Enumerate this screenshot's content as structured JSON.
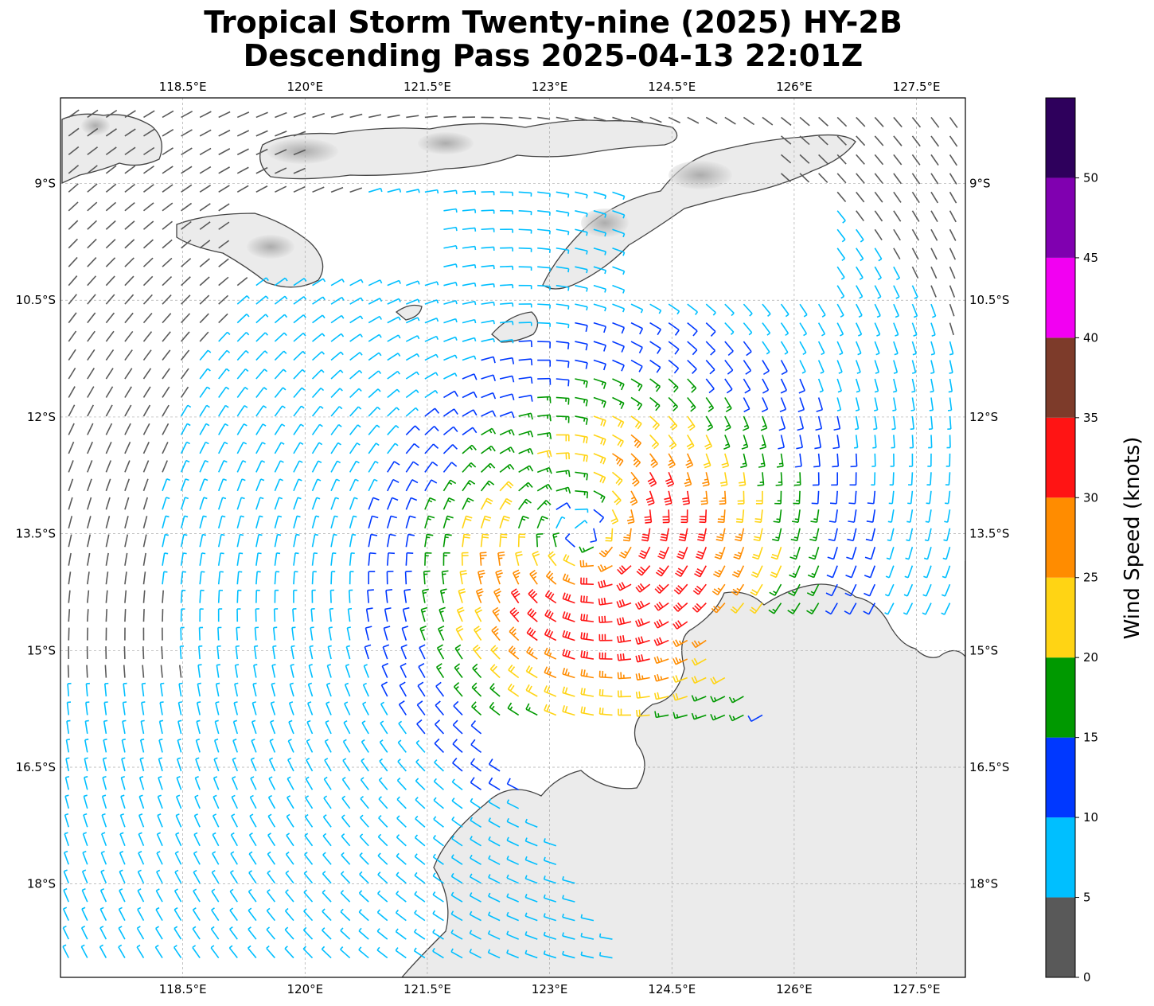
{
  "title": {
    "line1": "Tropical Storm Twenty-nine (2025) HY-2B",
    "line2": "Descending Pass 2025-04-13 22:01Z"
  },
  "map": {
    "lon_range": [
      117.0,
      128.1
    ],
    "lat_range": [
      -19.2,
      -7.9
    ],
    "lon_ticks": [
      {
        "value": 118.5,
        "label": "118.5°E"
      },
      {
        "value": 120.0,
        "label": "120°E"
      },
      {
        "value": 121.5,
        "label": "121.5°E"
      },
      {
        "value": 123.0,
        "label": "123°E"
      },
      {
        "value": 124.5,
        "label": "124.5°E"
      },
      {
        "value": 126.0,
        "label": "126°E"
      },
      {
        "value": 127.5,
        "label": "127.5°E"
      }
    ],
    "lat_ticks": [
      {
        "value": -9.0,
        "label": "9°S"
      },
      {
        "value": -10.5,
        "label": "10.5°S"
      },
      {
        "value": -12.0,
        "label": "12°S"
      },
      {
        "value": -13.5,
        "label": "13.5°S"
      },
      {
        "value": -15.0,
        "label": "15°S"
      },
      {
        "value": -16.5,
        "label": "16.5°S"
      },
      {
        "value": -18.0,
        "label": "18°S"
      }
    ],
    "gridlines": true,
    "storm_center": {
      "lon": 123.4,
      "lat": -13.5
    },
    "wind_field": "cyclonic (clockwise) circulation, strongest winds (30-35 kt) southeast of center"
  },
  "colorbar": {
    "title": "Wind Speed (knots)",
    "bins": [
      {
        "min": 0,
        "max": 5,
        "color": "#595959"
      },
      {
        "min": 5,
        "max": 10,
        "color": "#00bfff"
      },
      {
        "min": 10,
        "max": 15,
        "color": "#0038ff"
      },
      {
        "min": 15,
        "max": 20,
        "color": "#009900"
      },
      {
        "min": 20,
        "max": 25,
        "color": "#ffd414"
      },
      {
        "min": 25,
        "max": 30,
        "color": "#ff8c00"
      },
      {
        "min": 30,
        "max": 35,
        "color": "#ff1414"
      },
      {
        "min": 35,
        "max": 40,
        "color": "#7d3b2a"
      },
      {
        "min": 40,
        "max": 45,
        "color": "#f200f2"
      },
      {
        "min": 45,
        "max": 50,
        "color": "#8000b0"
      },
      {
        "min": 50,
        "max": 55,
        "color": "#2e005c"
      }
    ],
    "tick_labels": [
      "0",
      "5",
      "10",
      "15",
      "20",
      "25",
      "30",
      "35",
      "40",
      "45",
      "50"
    ]
  }
}
